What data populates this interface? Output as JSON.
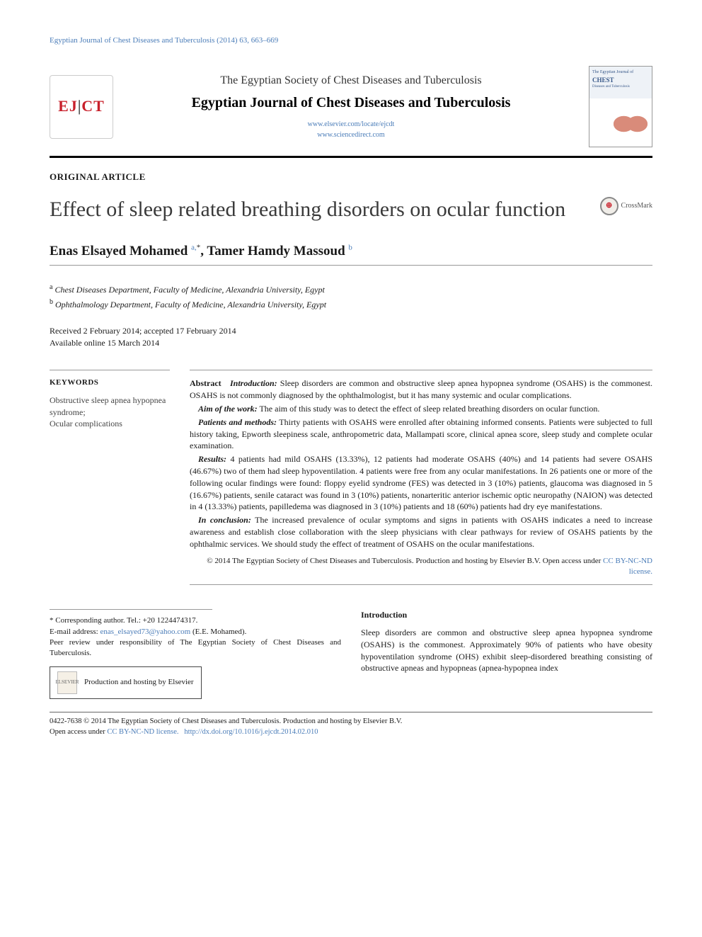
{
  "running_head": "Egyptian Journal of Chest Diseases and Tuberculosis (2014) 63, 663–669",
  "header": {
    "logo_text_1": "EJ",
    "logo_text_2": "CT",
    "society": "The Egyptian Society of Chest Diseases and Tuberculosis",
    "journal": "Egyptian Journal of Chest Diseases and Tuberculosis",
    "link1": "www.elsevier.com/locate/ejcdt",
    "link2": "www.sciencedirect.com",
    "cover_title": "CHEST"
  },
  "article_type": "ORIGINAL ARTICLE",
  "title": "Effect of sleep related breathing disorders on ocular function",
  "crossmark_label": "CrossMark",
  "authors_html": "Enas Elsayed Mohamed <sup><a>a,</a>*</sup>, Tamer Hamdy Massoud <sup><a>b</a></sup>",
  "affiliations": {
    "a": "Chest Diseases Department, Faculty of Medicine, Alexandria University, Egypt",
    "b": "Ophthalmology Department, Faculty of Medicine, Alexandria University, Egypt"
  },
  "dates": {
    "received_accepted": "Received 2 February 2014; accepted 17 February 2014",
    "online": "Available online 15 March 2014"
  },
  "keywords": {
    "heading": "KEYWORDS",
    "list": "Obstructive sleep apnea hypopnea syndrome;\nOcular complications"
  },
  "abstract": {
    "lead": "Abstract",
    "intro_label": "Introduction:",
    "intro": "Sleep disorders are common and obstructive sleep apnea hypopnea syndrome (OSAHS) is the commonest. OSAHS is not commonly diagnosed by the ophthalmologist, but it has many systemic and ocular complications.",
    "aim_label": "Aim of the work:",
    "aim": "The aim of this study was to detect the effect of sleep related breathing disorders on ocular function.",
    "methods_label": "Patients and methods:",
    "methods": "Thirty patients with OSAHS were enrolled after obtaining informed consents. Patients were subjected to full history taking, Epworth sleepiness scale, anthropometric data, Mallampati score, clinical apnea score, sleep study and complete ocular examination.",
    "results_label": "Results:",
    "results": "4 patients had mild OSAHS (13.33%), 12 patients had moderate OSAHS (40%) and 14 patients had severe OSAHS (46.67%) two of them had sleep hypoventilation. 4 patients were free from any ocular manifestations. In 26 patients one or more of the following ocular findings were found: floppy eyelid syndrome (FES) was detected in 3 (10%) patients, glaucoma was diagnosed in 5 (16.67%) patients, senile cataract was found in 3 (10%) patients, nonarteritic anterior ischemic optic neuropathy (NAION) was detected in 4 (13.33%) patients, papilledema was diagnosed in 3 (10%) patients and 18 (60%) patients had dry eye manifestations.",
    "conclusion_label": "In conclusion:",
    "conclusion": "The increased prevalence of ocular symptoms and signs in patients with OSAHS indicates a need to increase awareness and establish close collaboration with the sleep physicians with clear pathways for review of OSAHS patients by the ophthalmic services. We should study the effect of treatment of OSAHS on the ocular manifestations.",
    "copyright": "© 2014 The Egyptian Society of Chest Diseases and Tuberculosis. Production and hosting by Elsevier B.V.",
    "license_prefix": "Open access under ",
    "license_link": "CC BY-NC-ND license."
  },
  "correspondence": {
    "line1": "* Corresponding author. Tel.: +20 1224474317.",
    "email_label": "E-mail address: ",
    "email": "enas_elsayed73@yahoo.com",
    "email_suffix": " (E.E. Mohamed).",
    "peer": "Peer review under responsibility of The Egyptian Society of Chest Diseases and Tuberculosis.",
    "hosting": "Production and hosting by Elsevier",
    "elsevier_label": "ELSEVIER"
  },
  "body": {
    "intro_heading": "Introduction",
    "intro_para": "Sleep disorders are common and obstructive sleep apnea hypopnea syndrome (OSAHS) is the commonest. Approximately 90% of patients who have obesity hypoventilation syndrome (OHS) exhibit sleep-disordered breathing consisting of obstructive apneas and hypopneas (apnea-hypopnea index"
  },
  "footer": {
    "line1": "0422-7638 © 2014 The Egyptian Society of Chest Diseases and Tuberculosis. Production and hosting by Elsevier B.V.",
    "line2_prefix": "Open access under ",
    "line2_link": "CC BY-NC-ND license.",
    "doi": "http://dx.doi.org/10.1016/j.ejcdt.2014.02.010"
  },
  "colors": {
    "link": "#4a7cb8",
    "brand_red": "#c8202b"
  }
}
